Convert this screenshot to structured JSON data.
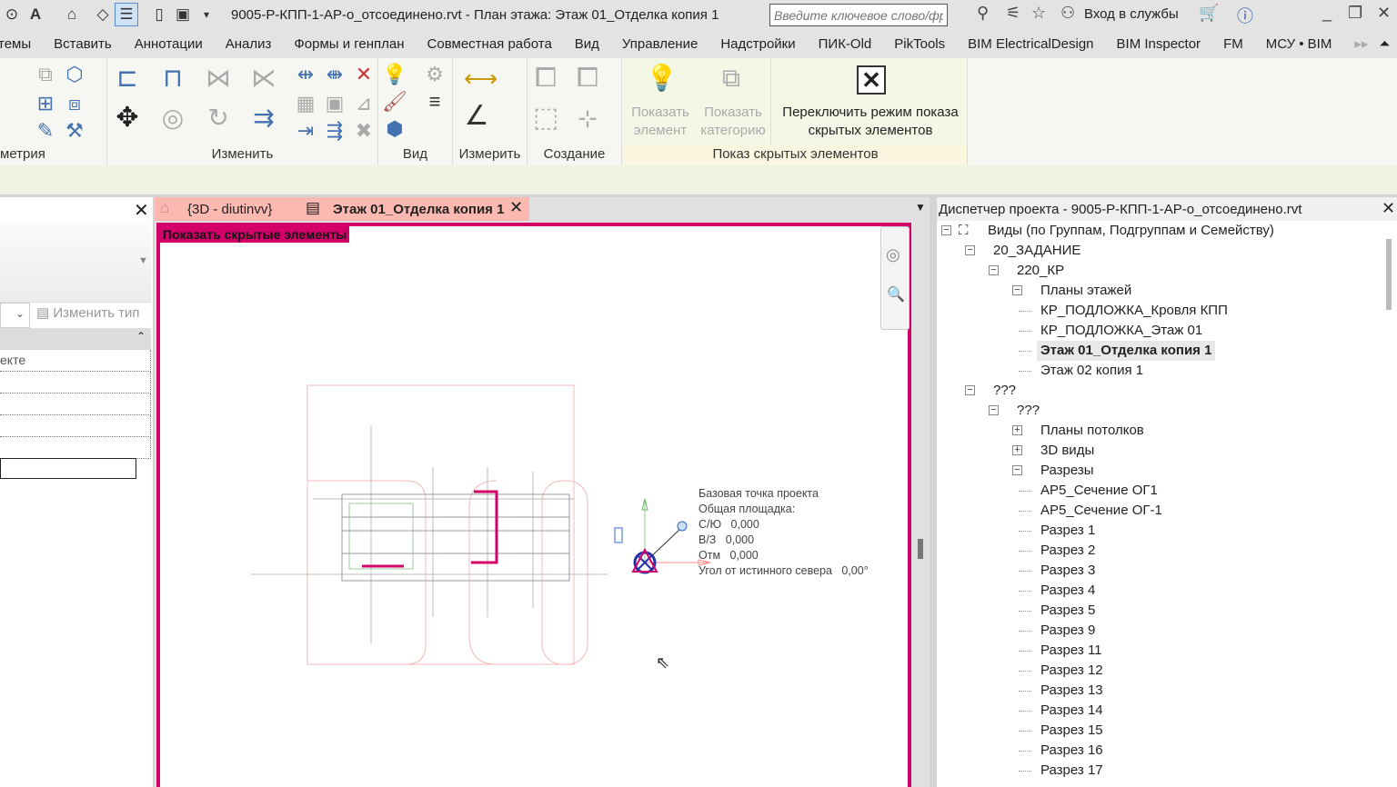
{
  "titlebar": {
    "title": "9005-Р-КПП-1-АР-о_отсоединено.rvt - План этажа: Этаж 01_Отделка копия 1",
    "search_placeholder": "Введите ключевое слово/фразу",
    "login": "Вход в службы"
  },
  "ribbon_tabs": [
    "темы",
    "Вставить",
    "Аннотации",
    "Анализ",
    "Формы и генплан",
    "Совместная работа",
    "Вид",
    "Управление",
    "Надстройки",
    "ПИК-Old",
    "PikTools",
    "BIM ElectricalDesign",
    "BIM Inspector",
    "FM",
    "МСУ • BIM"
  ],
  "ribbon": {
    "panels": [
      "метрия",
      "Изменить",
      "Вид",
      "Измерить",
      "Создание",
      "Показ скрытых элементов"
    ],
    "show_element": "Показать элемент",
    "show_category": "Показать категорию",
    "toggle_hidden": "Переключить режим показа скрытых элементов"
  },
  "left_panel": {
    "edit_type": "Изменить тип",
    "row0": "екте"
  },
  "view_tabs": [
    {
      "label": "{3D - diutinvv}",
      "active": false
    },
    {
      "label": "Этаж 01_Отделка копия 1",
      "active": true
    }
  ],
  "view": {
    "banner": "Показать скрытые элементы",
    "banner_color": "#d4006a",
    "basepoint": [
      "Базовая точка проекта",
      "Общая площадка:",
      "С/Ю   0,000",
      "В/З   0,000",
      "Отм   0,000",
      "Угол от истинного севера   0,00°"
    ]
  },
  "browser": {
    "title": "Диспетчер проекта - 9005-Р-КПП-1-АР-о_отсоединено.rvt",
    "tree": [
      {
        "label": "Виды (по Группам, Подгруппам и Семейству)",
        "depth": 0,
        "exp": "-"
      },
      {
        "label": "20_ЗАДАНИЕ",
        "depth": 1,
        "exp": "-"
      },
      {
        "label": "220_КР",
        "depth": 2,
        "exp": "-"
      },
      {
        "label": "Планы этажей",
        "depth": 3,
        "exp": "-"
      },
      {
        "label": "КР_ПОДЛОЖКА_Кровля КПП",
        "depth": 4
      },
      {
        "label": "КР_ПОДЛОЖКА_Этаж 01",
        "depth": 4
      },
      {
        "label": "Этаж 01_Отделка копия 1",
        "depth": 4,
        "selected": true
      },
      {
        "label": "Этаж 02 копия 1",
        "depth": 4
      },
      {
        "label": "???",
        "depth": 1,
        "exp": "-"
      },
      {
        "label": "???",
        "depth": 2,
        "exp": "-"
      },
      {
        "label": "Планы потолков",
        "depth": 3,
        "exp": "+"
      },
      {
        "label": "3D виды",
        "depth": 3,
        "exp": "+"
      },
      {
        "label": "Разрезы",
        "depth": 3,
        "exp": "-"
      },
      {
        "label": "АР5_Сечение ОГ1",
        "depth": 4
      },
      {
        "label": "АР5_Сечение ОГ-1",
        "depth": 4
      },
      {
        "label": "Разрез 1",
        "depth": 4
      },
      {
        "label": "Разрез 2",
        "depth": 4
      },
      {
        "label": "Разрез 3",
        "depth": 4
      },
      {
        "label": "Разрез 4",
        "depth": 4
      },
      {
        "label": "Разрез 5",
        "depth": 4
      },
      {
        "label": "Разрез 9",
        "depth": 4
      },
      {
        "label": "Разрез 11",
        "depth": 4
      },
      {
        "label": "Разрез 12",
        "depth": 4
      },
      {
        "label": "Разрез 13",
        "depth": 4
      },
      {
        "label": "Разрез 14",
        "depth": 4
      },
      {
        "label": "Разрез 15",
        "depth": 4
      },
      {
        "label": "Разрез 16",
        "depth": 4
      },
      {
        "label": "Разрез 17",
        "depth": 4
      }
    ]
  }
}
